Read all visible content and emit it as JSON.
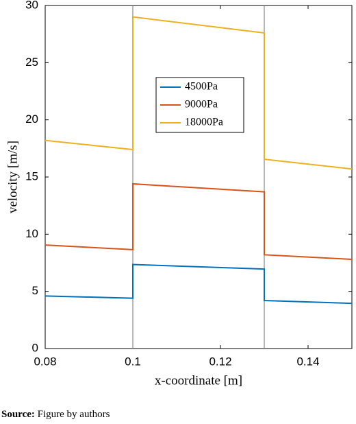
{
  "chart_data": {
    "type": "line",
    "xlabel": "x-coordinate [m]",
    "ylabel": "velocity [m/s]",
    "x": [
      0.08,
      0.1,
      0.1,
      0.13,
      0.13,
      0.15
    ],
    "series": [
      {
        "name": "4500Pa",
        "color": "#0072bd",
        "values": [
          4.6,
          4.4,
          7.35,
          6.95,
          4.2,
          3.95
        ]
      },
      {
        "name": "9000Pa",
        "color": "#d95319",
        "values": [
          9.05,
          8.65,
          14.4,
          13.7,
          8.2,
          7.8
        ]
      },
      {
        "name": "18000Pa",
        "color": "#edb120",
        "values": [
          18.2,
          17.4,
          29.0,
          27.6,
          16.55,
          15.7
        ]
      }
    ],
    "xlim": [
      0.08,
      0.15
    ],
    "xticks": [
      0.08,
      0.1,
      0.12,
      0.14
    ],
    "ylim": [
      0,
      30
    ],
    "yticks": [
      0,
      5,
      10,
      15,
      20,
      25,
      30
    ],
    "vlines": [
      0.1,
      0.13
    ],
    "grid": false
  },
  "caption": {
    "label": "Source:",
    "text": "Figure by authors"
  }
}
